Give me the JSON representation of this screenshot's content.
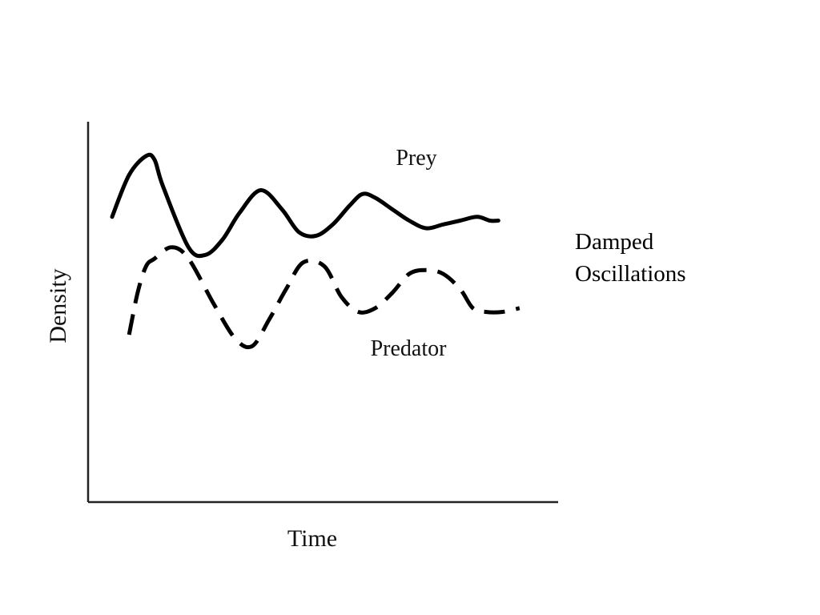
{
  "side_caption": {
    "line1": "Damped",
    "line2": "Oscillations"
  },
  "chart_data": {
    "type": "line",
    "title": "",
    "xlabel": "Time",
    "ylabel": "Density",
    "xlim": [
      0,
      100
    ],
    "ylim": [
      0,
      100
    ],
    "grid": false,
    "ticks": false,
    "series": [
      {
        "name": "Prey",
        "style": "solid",
        "color": "#000000",
        "x": [
          0,
          4,
          8,
          10,
          12,
          18,
          22,
          26,
          30,
          35,
          40,
          44,
          48,
          52,
          56,
          59,
          62,
          66,
          70,
          74,
          78,
          82,
          86,
          89,
          91
        ],
        "y": [
          75,
          86,
          91,
          90,
          83,
          67,
          65,
          69,
          76,
          82,
          77,
          71,
          70,
          73,
          78,
          81,
          80,
          77,
          74,
          72,
          73,
          74,
          75,
          74,
          74
        ]
      },
      {
        "name": "Predator",
        "style": "dashed",
        "color": "#000000",
        "x": [
          4,
          6,
          8,
          10,
          14,
          18,
          24,
          29,
          33,
          37,
          41,
          45,
          50,
          54,
          58,
          62,
          66,
          70,
          74,
          78,
          82,
          85,
          88,
          92,
          96
        ],
        "y": [
          44,
          55,
          62,
          64,
          67,
          64,
          52,
          43,
          41,
          48,
          56,
          63,
          62,
          54,
          50,
          51,
          55,
          60,
          61,
          60,
          56,
          51,
          50,
          50,
          51
        ]
      }
    ]
  }
}
